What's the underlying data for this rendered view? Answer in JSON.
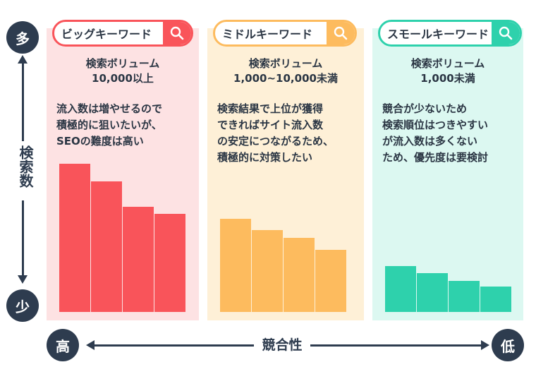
{
  "vertical_axis": {
    "label": "検索数",
    "top_label": "多",
    "bottom_label": "少"
  },
  "horizontal_axis": {
    "label": "競合性",
    "left_label": "高",
    "right_label": "低"
  },
  "colors": {
    "dark": "#2e3c4f",
    "big": "#f9545a",
    "middle": "#fdbb5e",
    "small": "#2ed1ac"
  },
  "panels": [
    {
      "title": "ビッグキーワード",
      "accent": "#f9545a",
      "bg": "#fde2e3",
      "volume": [
        "検索ボリューム",
        "10,000以上"
      ],
      "description": [
        "流入数は増やせるので",
        "積極的に狙いたいが、",
        "SEOの難度は高い"
      ],
      "bars": [
        100,
        88,
        71,
        66
      ]
    },
    {
      "title": "ミドルキーワード",
      "accent": "#fdbb5e",
      "bg": "#fef0d7",
      "volume": [
        "検索ボリューム",
        "1,000~10,000未満"
      ],
      "description": [
        "検索結果で上位が獲得",
        "できればサイト流入数",
        "の安定につながるため、",
        "積極的に対策したい"
      ],
      "bars": [
        63,
        55,
        50,
        42
      ]
    },
    {
      "title": "スモールキーワード",
      "accent": "#2ed1ac",
      "bg": "#dcf8f1",
      "volume": [
        "検索ボリューム",
        "1,000未満"
      ],
      "description": [
        "競合が少ないため",
        "検索順位はつきやすい",
        "が流入数は多くない",
        "ため、優先度は要検討"
      ],
      "bars": [
        31,
        26,
        21,
        17
      ]
    }
  ]
}
